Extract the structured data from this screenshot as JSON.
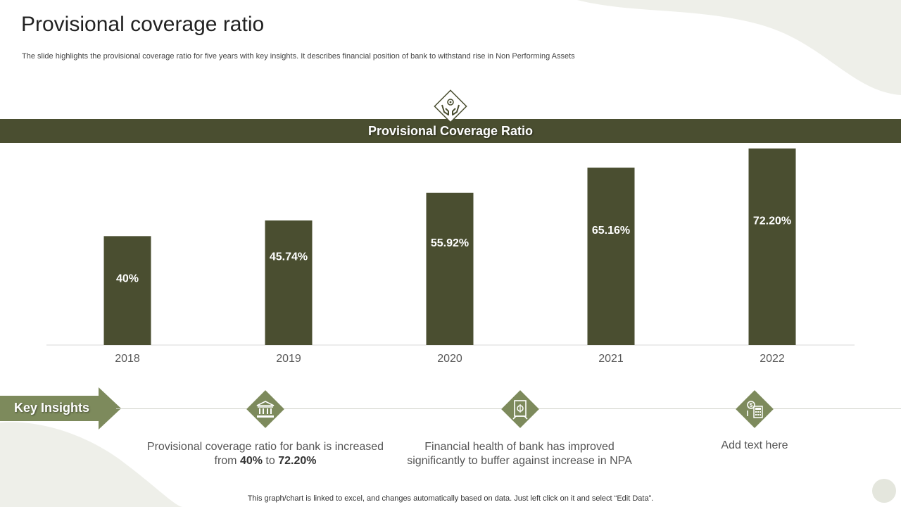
{
  "header": {
    "title": "Provisional coverage ratio",
    "subtitle": "The slide highlights the provisional coverage ratio for five years with key insights. It describes financial position of bank to withstand rise in Non Performing Assets"
  },
  "banner": {
    "label": "Provisional Coverage Ratio",
    "icon": "hands-gear-icon"
  },
  "colors": {
    "bar": "#4a4e30",
    "accent": "#7d8a5c",
    "bar_label": "#ffffff"
  },
  "chart_data": {
    "type": "bar",
    "title": "Provisional Coverage Ratio",
    "categories": [
      "2018",
      "2019",
      "2020",
      "2021",
      "2022"
    ],
    "values": [
      40,
      45.74,
      55.92,
      65.16,
      72.2
    ],
    "value_labels": [
      "40%",
      "45.74%",
      "55.92%",
      "65.16%",
      "72.20%"
    ],
    "ylim": [
      0,
      75
    ],
    "grid": false,
    "legend": "none"
  },
  "insights": {
    "label": "Key Insights",
    "items": [
      {
        "icon": "bank-icon",
        "text_before": "Provisional coverage ratio for bank is increased from ",
        "strong1": "40%",
        "text_mid": " to ",
        "strong2": "72.20%"
      },
      {
        "icon": "money-document-icon",
        "text": "Financial health of bank has improved significantly to buffer against increase in NPA"
      },
      {
        "icon": "calculator-dollar-icon",
        "text": "Add text here"
      }
    ]
  },
  "footer": {
    "note": "This graph/chart is linked to excel,  and changes automatically based on data. Just left click on it and select “Edit Data”."
  }
}
